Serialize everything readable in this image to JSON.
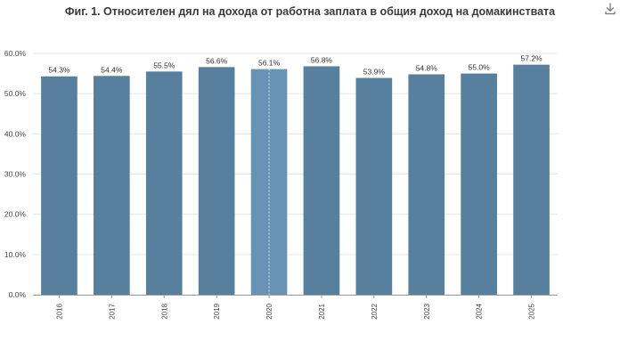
{
  "header": {
    "download_icon": "download-icon"
  },
  "chart_data": {
    "type": "bar",
    "title": "Фиг. 1. Относителен дял на дохода от работна заплата в общия доход на домакинствата",
    "categories": [
      "2016",
      "2017",
      "2018",
      "2019",
      "2020",
      "2021",
      "2022",
      "2023",
      "2024",
      "2025"
    ],
    "values": [
      54.3,
      54.4,
      55.5,
      56.6,
      56.1,
      56.8,
      53.9,
      54.8,
      55.0,
      57.2
    ],
    "data_labels": [
      "54.3%",
      "54.4%",
      "55.5%",
      "56.6%",
      "56.1%",
      "56.8%",
      "53.9%",
      "54.8%",
      "55.0%",
      "57.2%"
    ],
    "ylim": [
      0,
      60
    ],
    "yticks": [
      0,
      10,
      20,
      30,
      40,
      50,
      60
    ],
    "ytick_labels": [
      "0.0%",
      "10.0%",
      "20.0%",
      "30.0%",
      "40.0%",
      "50.0%",
      "60.0%"
    ],
    "highlighted_category": "2020",
    "grid": true,
    "colors": {
      "bar": "#56809e",
      "bar_highlight": "#6893b4",
      "grid": "#e6e6e6",
      "axis": "#999999"
    }
  }
}
